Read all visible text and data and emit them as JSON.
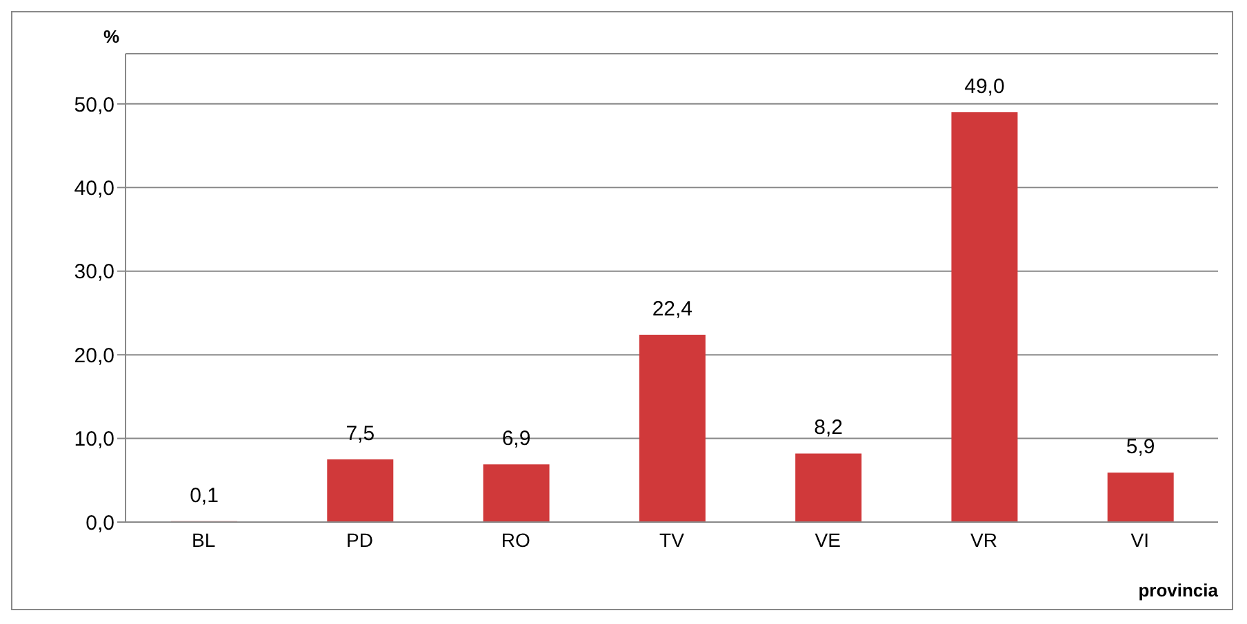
{
  "chart_data": {
    "type": "bar",
    "xlabel": "provincia",
    "ylabel": "%",
    "categories": [
      "BL",
      "PD",
      "RO",
      "TV",
      "VE",
      "VR",
      "VI"
    ],
    "values": [
      0.1,
      7.5,
      6.9,
      22.4,
      8.2,
      49.0,
      5.9
    ],
    "value_labels": [
      "0,1",
      "7,5",
      "6,9",
      "22,4",
      "8,2",
      "49,0",
      "5,9"
    ],
    "color": "#d0393a",
    "ylim": [
      0,
      56
    ],
    "yticks": [
      {
        "value": 0,
        "label": "0,0"
      },
      {
        "value": 10,
        "label": "10,0"
      },
      {
        "value": 20,
        "label": "20,0"
      },
      {
        "value": 30,
        "label": "30,0"
      },
      {
        "value": 40,
        "label": "40,0"
      },
      {
        "value": 50,
        "label": "50,0"
      }
    ],
    "grid": "y"
  }
}
